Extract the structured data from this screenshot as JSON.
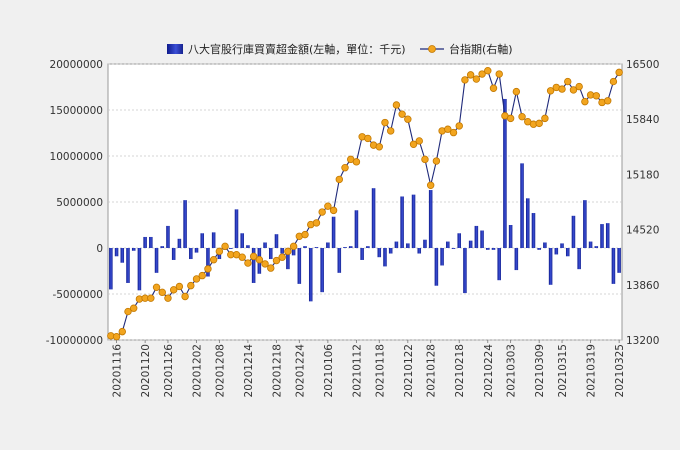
{
  "chart_data": {
    "type": "bar+line",
    "legend": {
      "placement": "top",
      "bar_label": "八大官股行庫買賣超金額(左軸，單位：千元)",
      "line_label": "台指期(右軸)"
    },
    "grid": true,
    "left_axis": {
      "ylim": [
        -10000000,
        20000000
      ],
      "ticks": [
        "20000000",
        "15000000",
        "10000000",
        "5000000",
        "0",
        "-5000000",
        "-10000000"
      ]
    },
    "right_axis": {
      "ylim": [
        13200,
        16500
      ],
      "ticks": [
        "16500",
        "15840",
        "15180",
        "14520",
        "13860",
        "13200"
      ]
    },
    "x_tick_labels": [
      "20201116",
      "20201120",
      "20201126",
      "20201202",
      "20201208",
      "20201214",
      "20201218",
      "20201224",
      "20210106",
      "20210112",
      "20210118",
      "20210122",
      "20210128",
      "20210218",
      "20210224",
      "20210303",
      "20210309",
      "20210315",
      "20210319",
      "20210325"
    ],
    "series": [
      {
        "type": "bar",
        "axis": "left",
        "values": [
          -4500000,
          -900000,
          -1600000,
          -3800000,
          -300000,
          -4600000,
          1200000,
          1200000,
          -2700000,
          200000,
          2400000,
          -1300000,
          1000000,
          5200000,
          -1200000,
          -500000,
          1600000,
          -3100000,
          1700000,
          -1200000,
          -200000,
          -100000,
          4200000,
          1600000,
          300000,
          -3800000,
          -2800000,
          600000,
          -1200000,
          1500000,
          -600000,
          -2300000,
          -800000,
          -3900000,
          200000,
          -5800000,
          100000,
          -4800000,
          600000,
          3400000,
          -2700000,
          100000,
          200000,
          4100000,
          -1300000,
          200000,
          6500000,
          -1000000,
          -2000000,
          -600000,
          700000,
          5600000,
          500000,
          5800000,
          -600000,
          900000,
          6300000,
          -4100000,
          -1900000,
          700000,
          -100000,
          1600000,
          -4900000,
          800000,
          2400000,
          1900000,
          -200000,
          -200000,
          -3500000,
          16200000,
          2500000,
          -2400000,
          9200000,
          5400000,
          3800000,
          -200000,
          600000,
          -4000000,
          -700000,
          500000,
          -900000,
          3500000,
          -2300000,
          5200000,
          700000,
          200000,
          2600000,
          2700000,
          -3900000,
          -2700000
        ]
      },
      {
        "type": "line",
        "axis": "right",
        "values": [
          13250,
          13240,
          13300,
          13540,
          13580,
          13690,
          13700,
          13700,
          13830,
          13770,
          13700,
          13800,
          13840,
          13720,
          13850,
          13930,
          13970,
          14050,
          14160,
          14260,
          14320,
          14220,
          14220,
          14190,
          14120,
          14200,
          14160,
          14110,
          14060,
          14150,
          14190,
          14260,
          14320,
          14440,
          14460,
          14580,
          14600,
          14730,
          14800,
          14750,
          15120,
          15260,
          15360,
          15330,
          15630,
          15610,
          15530,
          15510,
          15800,
          15700,
          16010,
          15900,
          15840,
          15540,
          15580,
          15360,
          15050,
          15340,
          15700,
          15720,
          15680,
          15760,
          16310,
          16370,
          16320,
          16380,
          16420,
          16210,
          16380,
          15880,
          15850,
          16170,
          15870,
          15810,
          15780,
          15790,
          15850,
          16180,
          16220,
          16200,
          16290,
          16190,
          16230,
          16050,
          16130,
          16120,
          16040,
          16060,
          16290,
          16400
        ]
      }
    ]
  }
}
